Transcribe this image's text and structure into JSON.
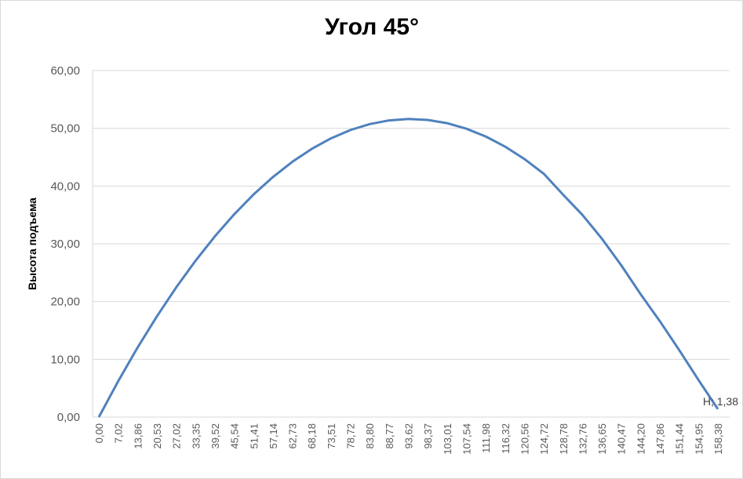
{
  "chart_data": {
    "type": "line",
    "title": "Угол 45°",
    "ylabel": "Высота подъема",
    "categories": [
      "0,00",
      "7,02",
      "13,86",
      "20,53",
      "27,02",
      "33,35",
      "39,52",
      "45,54",
      "51,41",
      "57,14",
      "62,73",
      "68,18",
      "73,51",
      "78,72",
      "83,80",
      "88,77",
      "93,62",
      "98,37",
      "103,01",
      "107,54",
      "111,98",
      "116,32",
      "120,56",
      "124,72",
      "128,78",
      "132,76",
      "136,65",
      "140,47",
      "144,20",
      "147,86",
      "151,44",
      "154,95",
      "158,38"
    ],
    "series": [
      {
        "name": "H",
        "color": "#4f81bd",
        "values": [
          0,
          6.21,
          12.03,
          17.44,
          22.46,
          27.08,
          31.3,
          35.12,
          38.55,
          41.57,
          44.2,
          46.43,
          48.26,
          49.7,
          50.73,
          51.37,
          51.61,
          51.45,
          50.89,
          49.93,
          48.58,
          46.83,
          44.68,
          42.13,
          38.5,
          35.0,
          30.9,
          26.3,
          21.3,
          16.6,
          11.6,
          6.4,
          1.38
        ],
        "value_labels": [
          null,
          null,
          null,
          null,
          null,
          null,
          null,
          null,
          null,
          null,
          null,
          null,
          null,
          null,
          null,
          null,
          null,
          null,
          null,
          null,
          null,
          null,
          null,
          null,
          null,
          null,
          null,
          null,
          null,
          null,
          null,
          null,
          "H; 1,38"
        ]
      }
    ],
    "ylim": [
      0,
      60
    ],
    "yticks": [
      {
        "value": 0,
        "label": "0,00"
      },
      {
        "value": 10,
        "label": "10,00"
      },
      {
        "value": 20,
        "label": "20,00"
      },
      {
        "value": 30,
        "label": "30,00"
      },
      {
        "value": 40,
        "label": "40,00"
      },
      {
        "value": 50,
        "label": "50,00"
      },
      {
        "value": 60,
        "label": "60,00"
      }
    ],
    "grid": true
  }
}
